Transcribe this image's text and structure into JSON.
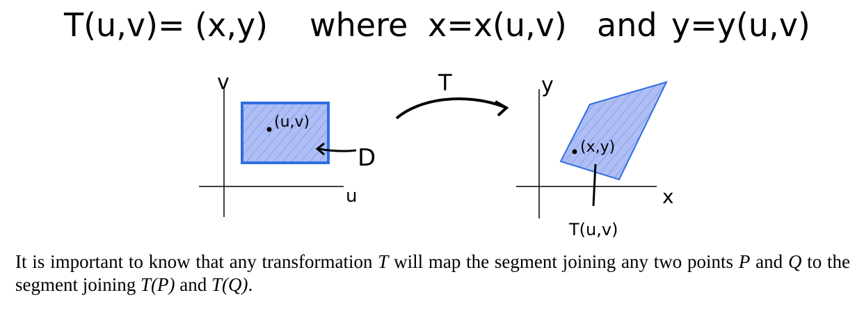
{
  "heading": {
    "part1": "T(u,v)= (x,y)",
    "part2": "where",
    "part3": "x=x(u,v)",
    "part4": "and",
    "part5": "y=y(u,v)"
  },
  "left_graph": {
    "y_axis_label": "v",
    "x_axis_label": "u",
    "point_label": "(u,v)",
    "region_label": "D"
  },
  "arrow_label": "T",
  "right_graph": {
    "y_axis_label": "y",
    "x_axis_label": "x",
    "point_label": "(x,y)",
    "region_label": "T(u,v)"
  },
  "paragraph": {
    "s1": "It is important to know that any transformation ",
    "T": "T",
    "s2": " will map the segment joining any two points ",
    "P": "P",
    "s3": " and ",
    "Q": "Q",
    "s4": " to the segment joining ",
    "TP": "T(P)",
    "s5": " and ",
    "TQ": "T(Q)",
    "s6": "."
  },
  "colors": {
    "fill": "#aebef5",
    "outline": "#2f6fe0",
    "ink": "#000000"
  }
}
